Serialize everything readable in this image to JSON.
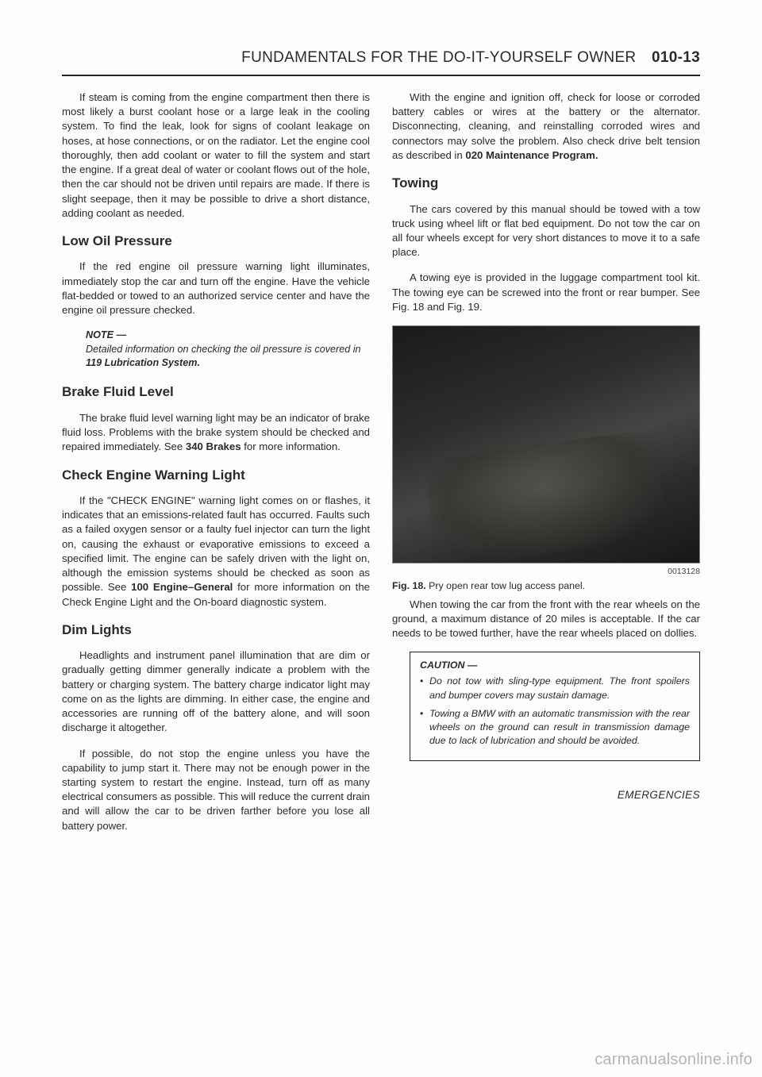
{
  "header": {
    "title_pre": "F",
    "title_mid1": "UNDAMENTALS FOR THE ",
    "title_d": "D",
    "title_mid2": "O-",
    "title_i": "I",
    "title_mid3": "T-",
    "title_y": "Y",
    "title_mid4": "OURSELF ",
    "title_o": "O",
    "title_end": "WNER",
    "page_num": "010-13"
  },
  "left": {
    "p1": "If steam is coming from the engine compartment then there is most likely a burst coolant hose or a large leak in the cooling system. To find the leak, look for signs of coolant leakage on hoses, at hose connections, or on the radiator. Let the engine cool thoroughly, then add coolant or water to fill the system and start the engine. If a great deal of water or coolant flows out of the hole, then the car should not be driven until repairs are made. If there is slight seepage, then it may be possible to drive a short distance, adding coolant as needed.",
    "h_low_oil": "Low Oil Pressure",
    "p_low_oil": "If the red engine oil pressure warning light illuminates, immediately stop the car and turn off the engine. Have the vehicle flat-bedded or towed to an authorized service center and have the engine oil pressure checked.",
    "note_label": "NOTE —",
    "note_body_a": "Detailed information on checking the oil pressure is covered in ",
    "note_bold": "119 Lubrication System.",
    "h_brake": "Brake Fluid Level",
    "p_brake_a": "The brake fluid level warning light may be an indicator of brake fluid loss. Problems with the brake system should be checked and repaired immediately. See ",
    "p_brake_bold": "340 Brakes",
    "p_brake_b": " for more information.",
    "h_check": "Check Engine Warning Light",
    "p_check_a": "If the \"CHECK ENGINE\" warning light comes on or flashes, it indicates that an emissions-related fault has occurred. Faults such as a failed oxygen sensor or a faulty fuel injector can turn the light on, causing the exhaust or evaporative emissions to exceed a specified limit. The engine can be safely driven with the light on, although the emission systems should be checked as soon as possible. See ",
    "p_check_bold": "100 Engine–General",
    "p_check_b": " for more information on the Check Engine Light and the On-board diagnostic system.",
    "h_dim": "Dim Lights",
    "p_dim1": "Headlights and instrument panel illumination that are dim or gradually getting dimmer generally indicate a problem with the battery or charging system. The battery charge indicator light may come on as the lights are dimming. In either case, the engine and accessories are running off of the battery alone, and will soon discharge it altogether.",
    "p_dim2": "If possible, do not stop the engine unless you have the capability to jump start it. There may not be enough power in the starting system to restart the engine. Instead, turn off as many electrical consumers as possible. This will reduce the current drain and will allow the car to be driven farther before you lose all battery power."
  },
  "right": {
    "p_top_a": "With the engine and ignition off, check for loose or corroded battery cables or wires at the battery or the alternator. Disconnecting, cleaning, and reinstalling corroded wires and connectors may solve the problem. Also check drive belt tension as described in ",
    "p_top_bold": "020 Maintenance Program.",
    "h_tow": "Towing",
    "p_tow1": "The cars covered by this manual should be towed with a tow truck using wheel lift or flat bed equipment. Do not tow the car on all four wheels except for very short distances to move it to a safe place.",
    "p_tow2": "A towing eye is provided in the luggage compartment tool kit. The towing eye can be screwed into the front or rear bumper. See Fig. 18 and Fig. 19.",
    "fig_num": "0013128",
    "fig_caption_b": "Fig. 18.",
    "fig_caption": " Pry open rear tow lug access panel.",
    "p_after_fig": "When towing the car from the front with the rear wheels on the ground, a maximum distance of 20 miles is acceptable. If the car needs to be towed further, have the rear wheels placed on dollies.",
    "caution_label": "CAUTION —",
    "caution1": "Do not tow with sling-type equipment. The front spoilers and bumper covers may sustain damage.",
    "caution2": "Towing a BMW with an automatic transmission with the rear wheels on the ground can result in transmission damage due to lack of lubrication and should be avoided.",
    "footer": "EMERGENCIES"
  },
  "watermark": "carmanualsonline.info"
}
